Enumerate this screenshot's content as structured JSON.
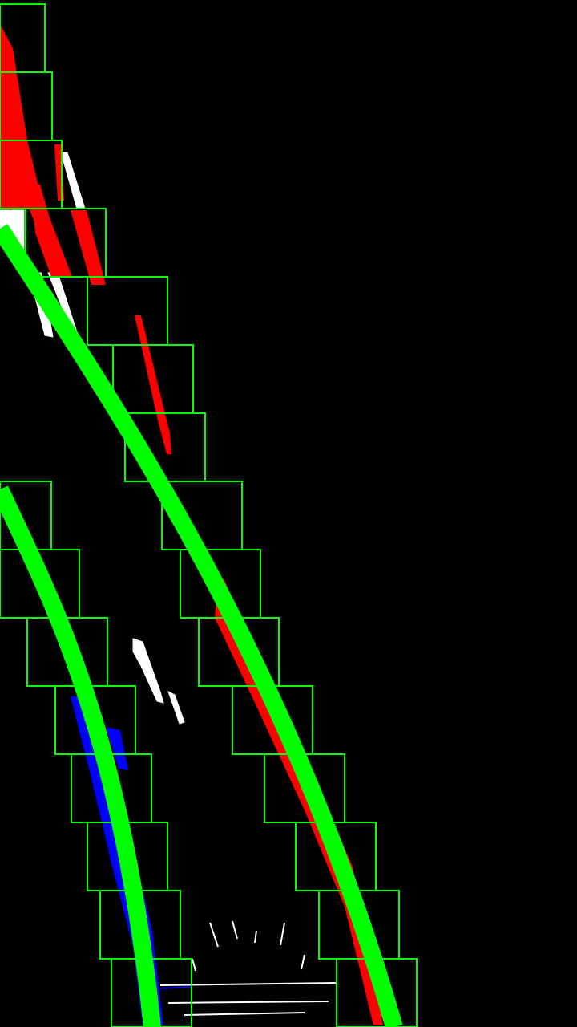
{
  "scene": {
    "background_color": "#000000",
    "window_color": "#00ff00",
    "fit_line_color": "#00ff00",
    "left_lane_pixel_color": "#0000ff",
    "right_lane_pixel_color": "#ff0000",
    "noise_pixel_color": "#ffffff"
  },
  "left_lane": {
    "window_count": 8
  },
  "right_lane": {
    "window_count": 15
  }
}
